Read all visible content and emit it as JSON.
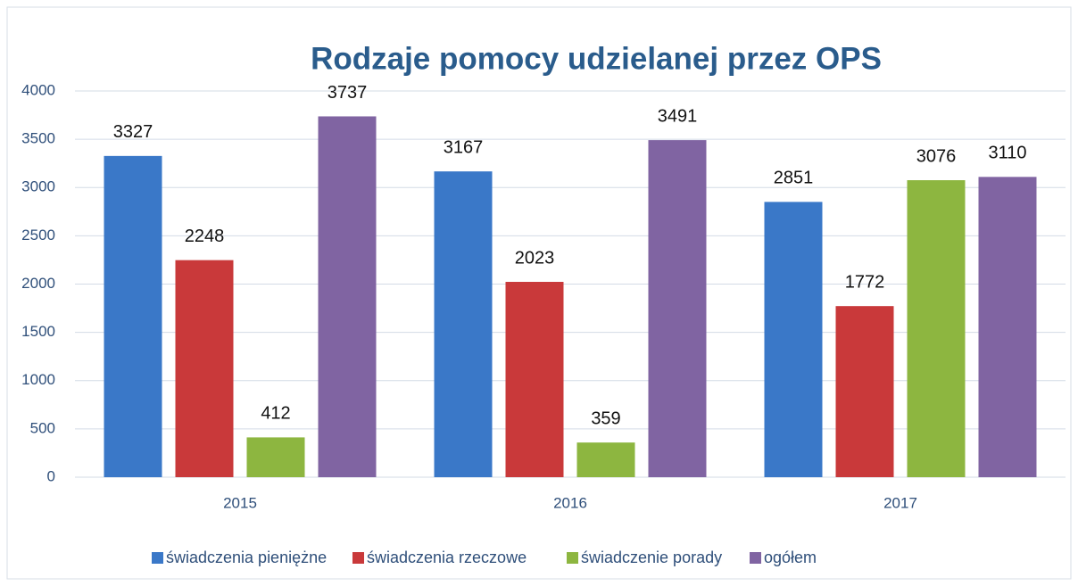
{
  "chart_data": {
    "type": "bar",
    "title": "Rodzaje pomocy udzielanej przez OPS",
    "categories": [
      "2015",
      "2016",
      "2017"
    ],
    "series": [
      {
        "name": "świadczenia pieniężne",
        "color": "#3a78c8",
        "values": [
          3327,
          3167,
          2851
        ]
      },
      {
        "name": "świadczenia rzeczowe",
        "color": "#c9393a",
        "values": [
          2248,
          2023,
          1772
        ]
      },
      {
        "name": "świadczenie porady",
        "color": "#8db640",
        "values": [
          412,
          359,
          3076
        ]
      },
      {
        "name": "ogółem",
        "color": "#8064a2",
        "values": [
          3737,
          3491,
          3110
        ]
      }
    ],
    "ylim": [
      0,
      4000
    ],
    "yticks": [
      0,
      500,
      1000,
      1500,
      2000,
      2500,
      3000,
      3500,
      4000
    ],
    "grid": true,
    "legend": "bottom"
  }
}
